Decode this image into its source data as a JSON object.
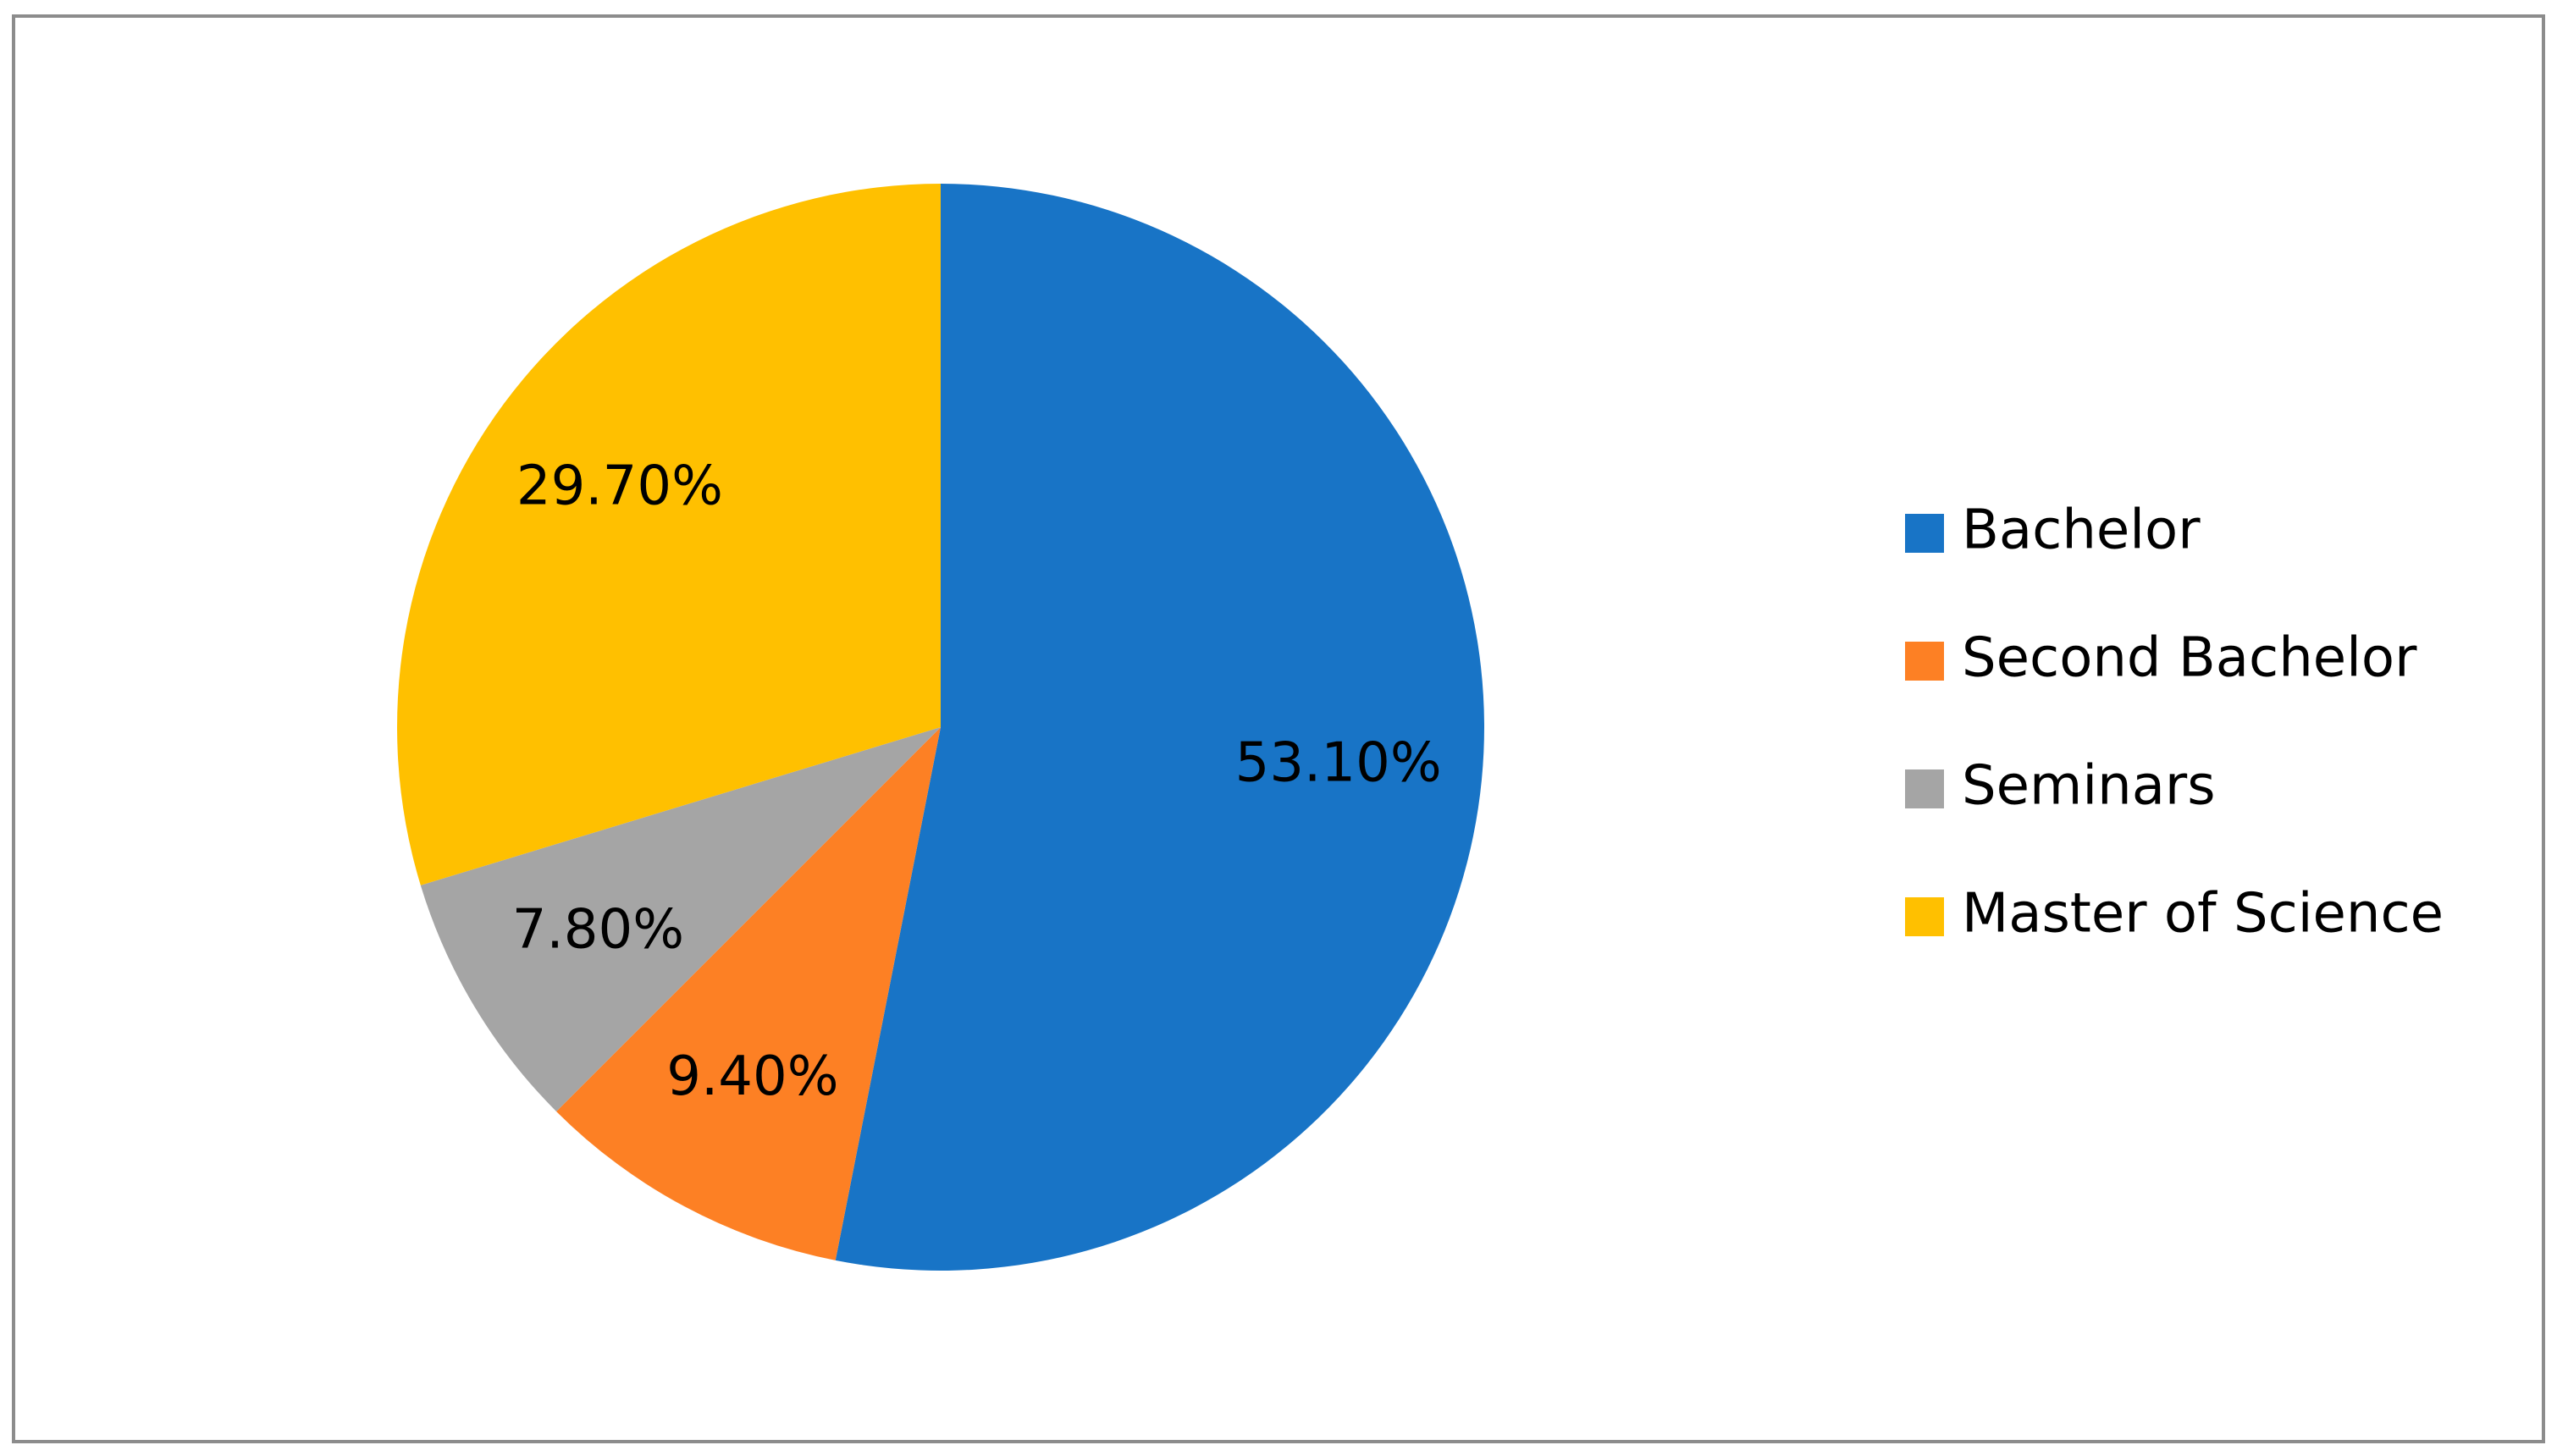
{
  "chart_data": {
    "type": "pie",
    "categories": [
      "Bachelor",
      "Second Bachelor",
      "Seminars",
      "Master of Science"
    ],
    "values": [
      53.1,
      9.4,
      7.8,
      29.7
    ],
    "value_labels": [
      "53.10%",
      "9.40%",
      "7.80%",
      "29.70%"
    ],
    "colors": [
      "#1874c6",
      "#fd8024",
      "#a5a5a5",
      "#ffc000"
    ],
    "legend": "right"
  }
}
